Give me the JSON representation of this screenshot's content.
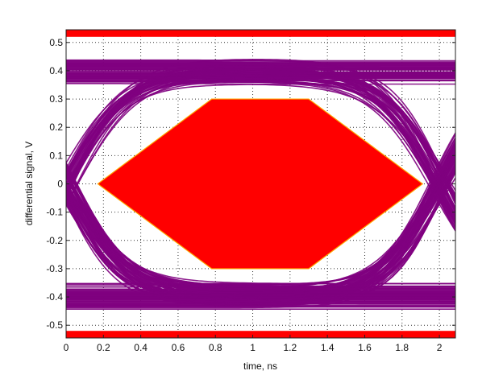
{
  "chart_data": {
    "type": "line",
    "title": "",
    "xlabel": "time, ns",
    "ylabel": "differential signal, V",
    "xlim": [
      0,
      2.086
    ],
    "ylim": [
      -0.545,
      0.545
    ],
    "x_ticks": [
      0,
      0.2,
      0.4,
      0.6,
      0.8,
      1,
      1.2,
      1.4,
      1.6,
      1.8,
      2
    ],
    "x_tick_labels": [
      "0",
      "0.2",
      "0.4",
      "0.6",
      "0.8",
      "1",
      "1.2",
      "1.4",
      "1.6",
      "1.8",
      "2"
    ],
    "y_ticks": [
      -0.5,
      -0.4,
      -0.3,
      -0.2,
      -0.1,
      0,
      0.1,
      0.2,
      0.3,
      0.4,
      0.5
    ],
    "y_tick_labels": [
      "-0.5",
      "-0.4",
      "-0.3",
      "-0.2",
      "-0.1",
      "0",
      "0.1",
      "0.2",
      "0.3",
      "0.4",
      "0.5"
    ],
    "grid": true,
    "grid_style": "dotted",
    "eye_traces": {
      "color": "#800080",
      "levels": [
        -0.4,
        0.4
      ],
      "level_noise": 0.03,
      "unit_interval": 2,
      "crossings": [
        0,
        2
      ],
      "crossing_jitter": 0.05,
      "rise_time_constant": 0.3
    },
    "eye_mask": {
      "color": "#ff0000",
      "edge_color": "#ffa500",
      "polygon": [
        [
          0.17,
          0
        ],
        [
          0.78,
          0.3
        ],
        [
          1.3,
          0.3
        ],
        [
          1.91,
          0
        ],
        [
          1.3,
          -0.3
        ],
        [
          0.78,
          -0.3
        ]
      ]
    },
    "mask_bands": {
      "color": "#ff0000",
      "upper": [
        0.52,
        0.545
      ],
      "lower": [
        -0.545,
        -0.52
      ]
    }
  }
}
